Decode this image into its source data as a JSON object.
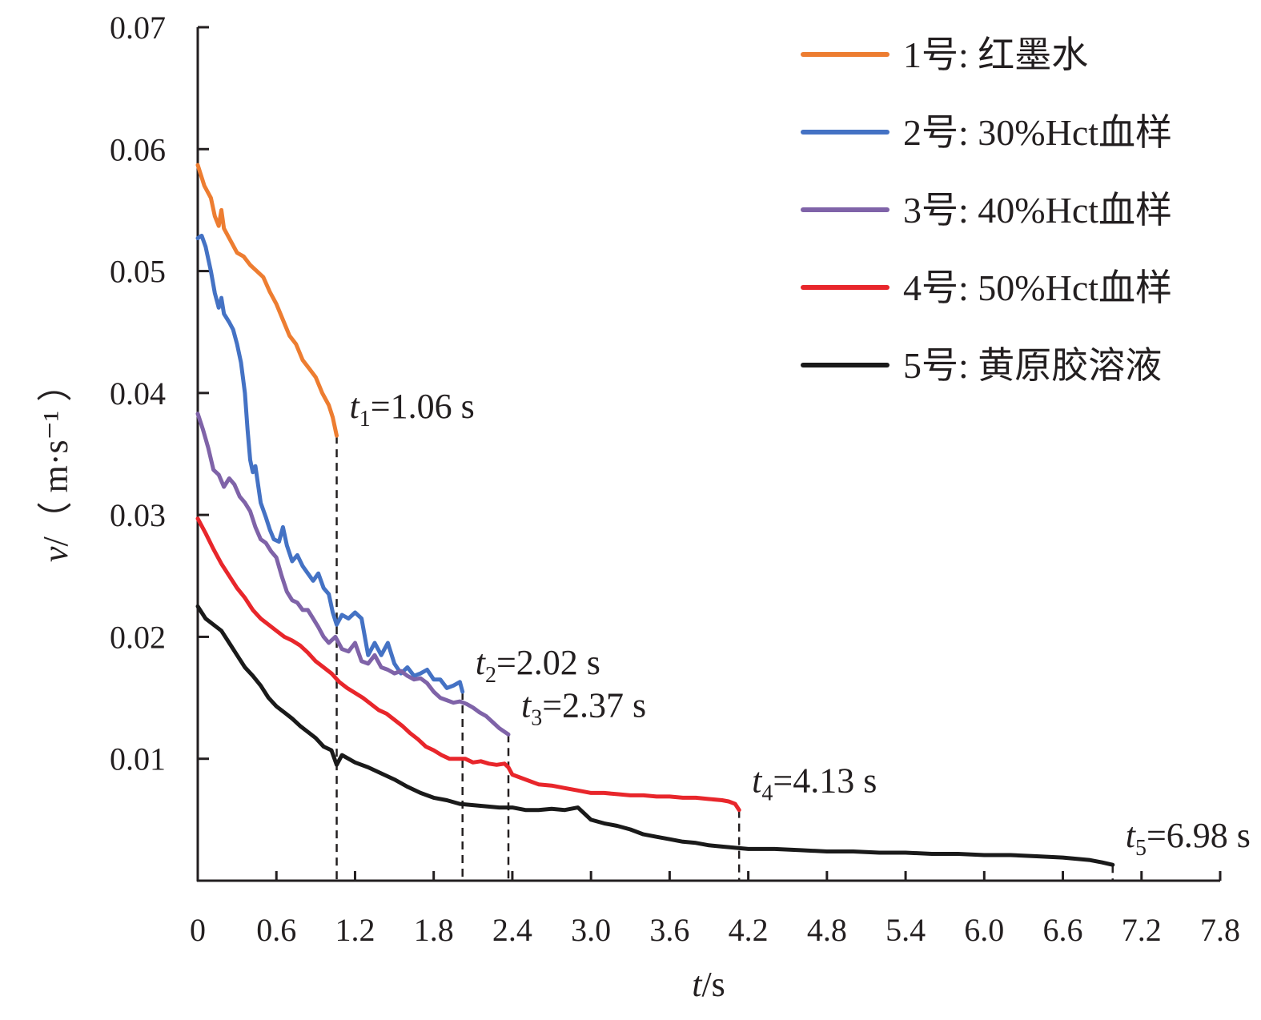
{
  "chart_data": {
    "type": "line",
    "xlabel": {
      "var": "t",
      "unit": "/s"
    },
    "ylabel": {
      "var": "v",
      "unit": "/（ m·s⁻¹ ）"
    },
    "xlim": [
      0,
      7.8
    ],
    "ylim": [
      0,
      0.07
    ],
    "x_ticks": [
      "0",
      "0.6",
      "1.2",
      "1.8",
      "2.4",
      "3.0",
      "3.6",
      "4.2",
      "4.8",
      "5.4",
      "6.0",
      "6.6",
      "7.2",
      "7.8"
    ],
    "y_ticks": [
      "0.01",
      "0.02",
      "0.03",
      "0.04",
      "0.05",
      "0.06",
      "0.07"
    ],
    "grid": false,
    "legend_position": "top-right",
    "series": [
      {
        "name": "1号: 红墨水",
        "color": "#ed7d31",
        "points": [
          [
            0,
            0.0587
          ],
          [
            0.05,
            0.057
          ],
          [
            0.1,
            0.056
          ],
          [
            0.13,
            0.0545
          ],
          [
            0.16,
            0.0537
          ],
          [
            0.18,
            0.055
          ],
          [
            0.2,
            0.0535
          ],
          [
            0.25,
            0.0525
          ],
          [
            0.3,
            0.0515
          ],
          [
            0.35,
            0.0512
          ],
          [
            0.4,
            0.0505
          ],
          [
            0.45,
            0.05
          ],
          [
            0.5,
            0.0495
          ],
          [
            0.55,
            0.0483
          ],
          [
            0.6,
            0.0473
          ],
          [
            0.65,
            0.046
          ],
          [
            0.7,
            0.0447
          ],
          [
            0.75,
            0.044
          ],
          [
            0.8,
            0.0427
          ],
          [
            0.85,
            0.042
          ],
          [
            0.9,
            0.0413
          ],
          [
            0.95,
            0.04
          ],
          [
            1.0,
            0.039
          ],
          [
            1.03,
            0.038
          ],
          [
            1.06,
            0.0365
          ]
        ]
      },
      {
        "name": "2号: 30%Hct血样",
        "color": "#4472c4",
        "points": [
          [
            0,
            0.0527
          ],
          [
            0.03,
            0.0529
          ],
          [
            0.06,
            0.052
          ],
          [
            0.1,
            0.05
          ],
          [
            0.13,
            0.0482
          ],
          [
            0.16,
            0.047
          ],
          [
            0.18,
            0.0478
          ],
          [
            0.2,
            0.0465
          ],
          [
            0.24,
            0.0458
          ],
          [
            0.27,
            0.0452
          ],
          [
            0.3,
            0.044
          ],
          [
            0.33,
            0.0425
          ],
          [
            0.36,
            0.04
          ],
          [
            0.38,
            0.037
          ],
          [
            0.4,
            0.0345
          ],
          [
            0.42,
            0.0335
          ],
          [
            0.44,
            0.034
          ],
          [
            0.46,
            0.0325
          ],
          [
            0.48,
            0.031
          ],
          [
            0.52,
            0.0298
          ],
          [
            0.55,
            0.0288
          ],
          [
            0.58,
            0.028
          ],
          [
            0.62,
            0.0278
          ],
          [
            0.65,
            0.029
          ],
          [
            0.68,
            0.0275
          ],
          [
            0.72,
            0.0262
          ],
          [
            0.76,
            0.0267
          ],
          [
            0.8,
            0.0258
          ],
          [
            0.84,
            0.0252
          ],
          [
            0.88,
            0.0246
          ],
          [
            0.92,
            0.0252
          ],
          [
            0.96,
            0.024
          ],
          [
            1.0,
            0.0235
          ],
          [
            1.03,
            0.022
          ],
          [
            1.06,
            0.021
          ],
          [
            1.1,
            0.0218
          ],
          [
            1.15,
            0.0215
          ],
          [
            1.2,
            0.022
          ],
          [
            1.25,
            0.0215
          ],
          [
            1.3,
            0.0185
          ],
          [
            1.35,
            0.0195
          ],
          [
            1.4,
            0.0185
          ],
          [
            1.45,
            0.0195
          ],
          [
            1.5,
            0.0178
          ],
          [
            1.55,
            0.017
          ],
          [
            1.6,
            0.0175
          ],
          [
            1.65,
            0.0168
          ],
          [
            1.7,
            0.017
          ],
          [
            1.75,
            0.0173
          ],
          [
            1.8,
            0.0165
          ],
          [
            1.85,
            0.0165
          ],
          [
            1.9,
            0.0158
          ],
          [
            1.95,
            0.016
          ],
          [
            2.0,
            0.0163
          ],
          [
            2.02,
            0.0155
          ]
        ]
      },
      {
        "name": "3号: 40%Hct血样",
        "color": "#7f63a8",
        "points": [
          [
            0,
            0.0383
          ],
          [
            0.04,
            0.037
          ],
          [
            0.08,
            0.0355
          ],
          [
            0.12,
            0.0337
          ],
          [
            0.16,
            0.0333
          ],
          [
            0.2,
            0.0323
          ],
          [
            0.24,
            0.033
          ],
          [
            0.28,
            0.0325
          ],
          [
            0.32,
            0.0315
          ],
          [
            0.36,
            0.031
          ],
          [
            0.4,
            0.0303
          ],
          [
            0.44,
            0.029
          ],
          [
            0.48,
            0.028
          ],
          [
            0.52,
            0.0277
          ],
          [
            0.56,
            0.027
          ],
          [
            0.6,
            0.0265
          ],
          [
            0.64,
            0.025
          ],
          [
            0.68,
            0.0237
          ],
          [
            0.72,
            0.023
          ],
          [
            0.76,
            0.0228
          ],
          [
            0.8,
            0.0222
          ],
          [
            0.84,
            0.0222
          ],
          [
            0.88,
            0.0215
          ],
          [
            0.92,
            0.0208
          ],
          [
            0.96,
            0.02
          ],
          [
            1.0,
            0.0195
          ],
          [
            1.05,
            0.02
          ],
          [
            1.1,
            0.019
          ],
          [
            1.15,
            0.0188
          ],
          [
            1.2,
            0.0195
          ],
          [
            1.25,
            0.018
          ],
          [
            1.3,
            0.0178
          ],
          [
            1.35,
            0.0185
          ],
          [
            1.4,
            0.0175
          ],
          [
            1.45,
            0.0173
          ],
          [
            1.5,
            0.017
          ],
          [
            1.55,
            0.0172
          ],
          [
            1.6,
            0.0168
          ],
          [
            1.65,
            0.0165
          ],
          [
            1.7,
            0.0166
          ],
          [
            1.75,
            0.0162
          ],
          [
            1.8,
            0.0155
          ],
          [
            1.85,
            0.015
          ],
          [
            1.9,
            0.0148
          ],
          [
            1.95,
            0.0146
          ],
          [
            2.0,
            0.0147
          ],
          [
            2.05,
            0.0145
          ],
          [
            2.1,
            0.0142
          ],
          [
            2.15,
            0.0138
          ],
          [
            2.2,
            0.0135
          ],
          [
            2.25,
            0.013
          ],
          [
            2.3,
            0.0125
          ],
          [
            2.37,
            0.012
          ]
        ]
      },
      {
        "name": "4号: 50%Hct血样",
        "color": "#e8262b",
        "points": [
          [
            0,
            0.0297
          ],
          [
            0.06,
            0.0285
          ],
          [
            0.12,
            0.0272
          ],
          [
            0.18,
            0.026
          ],
          [
            0.24,
            0.025
          ],
          [
            0.3,
            0.024
          ],
          [
            0.36,
            0.0232
          ],
          [
            0.42,
            0.0222
          ],
          [
            0.48,
            0.0215
          ],
          [
            0.54,
            0.021
          ],
          [
            0.6,
            0.0205
          ],
          [
            0.66,
            0.02
          ],
          [
            0.72,
            0.0197
          ],
          [
            0.78,
            0.0193
          ],
          [
            0.84,
            0.0187
          ],
          [
            0.9,
            0.018
          ],
          [
            0.96,
            0.0175
          ],
          [
            1.02,
            0.017
          ],
          [
            1.08,
            0.0163
          ],
          [
            1.14,
            0.0158
          ],
          [
            1.2,
            0.0154
          ],
          [
            1.26,
            0.015
          ],
          [
            1.32,
            0.0145
          ],
          [
            1.38,
            0.014
          ],
          [
            1.44,
            0.0137
          ],
          [
            1.5,
            0.0132
          ],
          [
            1.56,
            0.0127
          ],
          [
            1.62,
            0.0121
          ],
          [
            1.68,
            0.0116
          ],
          [
            1.74,
            0.011
          ],
          [
            1.8,
            0.0107
          ],
          [
            1.86,
            0.0103
          ],
          [
            1.92,
            0.01
          ],
          [
            1.98,
            0.01
          ],
          [
            2.04,
            0.01
          ],
          [
            2.1,
            0.0097
          ],
          [
            2.16,
            0.0098
          ],
          [
            2.22,
            0.0096
          ],
          [
            2.28,
            0.0095
          ],
          [
            2.34,
            0.0096
          ],
          [
            2.37,
            0.0093
          ],
          [
            2.4,
            0.0087
          ],
          [
            2.5,
            0.0083
          ],
          [
            2.6,
            0.0079
          ],
          [
            2.7,
            0.0078
          ],
          [
            2.8,
            0.0076
          ],
          [
            2.9,
            0.0074
          ],
          [
            3.0,
            0.0072
          ],
          [
            3.1,
            0.0072
          ],
          [
            3.2,
            0.0071
          ],
          [
            3.3,
            0.007
          ],
          [
            3.4,
            0.007
          ],
          [
            3.5,
            0.0069
          ],
          [
            3.6,
            0.0069
          ],
          [
            3.7,
            0.0068
          ],
          [
            3.8,
            0.0068
          ],
          [
            3.9,
            0.0067
          ],
          [
            4.0,
            0.0066
          ],
          [
            4.05,
            0.0065
          ],
          [
            4.1,
            0.0063
          ],
          [
            4.13,
            0.0058
          ]
        ]
      },
      {
        "name": "5号: 黄原胶溶液",
        "color": "#1a1a1a",
        "points": [
          [
            0,
            0.0225
          ],
          [
            0.06,
            0.0215
          ],
          [
            0.12,
            0.021
          ],
          [
            0.18,
            0.0205
          ],
          [
            0.24,
            0.0195
          ],
          [
            0.3,
            0.0185
          ],
          [
            0.36,
            0.0175
          ],
          [
            0.42,
            0.0168
          ],
          [
            0.48,
            0.016
          ],
          [
            0.54,
            0.015
          ],
          [
            0.6,
            0.0143
          ],
          [
            0.66,
            0.0138
          ],
          [
            0.72,
            0.0133
          ],
          [
            0.78,
            0.0127
          ],
          [
            0.84,
            0.0122
          ],
          [
            0.9,
            0.0117
          ],
          [
            0.96,
            0.011
          ],
          [
            1.02,
            0.0107
          ],
          [
            1.06,
            0.0095
          ],
          [
            1.1,
            0.0103
          ],
          [
            1.2,
            0.0097
          ],
          [
            1.3,
            0.0093
          ],
          [
            1.4,
            0.0088
          ],
          [
            1.5,
            0.0083
          ],
          [
            1.6,
            0.0077
          ],
          [
            1.7,
            0.0072
          ],
          [
            1.8,
            0.0068
          ],
          [
            1.9,
            0.0066
          ],
          [
            2.0,
            0.0063
          ],
          [
            2.1,
            0.0062
          ],
          [
            2.2,
            0.0061
          ],
          [
            2.3,
            0.006
          ],
          [
            2.4,
            0.006
          ],
          [
            2.5,
            0.0058
          ],
          [
            2.6,
            0.0058
          ],
          [
            2.7,
            0.0059
          ],
          [
            2.8,
            0.0058
          ],
          [
            2.9,
            0.006
          ],
          [
            3.0,
            0.005
          ],
          [
            3.1,
            0.0047
          ],
          [
            3.2,
            0.0045
          ],
          [
            3.3,
            0.0042
          ],
          [
            3.4,
            0.0038
          ],
          [
            3.5,
            0.0036
          ],
          [
            3.6,
            0.0034
          ],
          [
            3.7,
            0.0032
          ],
          [
            3.8,
            0.0031
          ],
          [
            3.9,
            0.0029
          ],
          [
            4.0,
            0.0028
          ],
          [
            4.1,
            0.0027
          ],
          [
            4.2,
            0.0026
          ],
          [
            4.4,
            0.0026
          ],
          [
            4.6,
            0.0025
          ],
          [
            4.8,
            0.0024
          ],
          [
            5.0,
            0.0024
          ],
          [
            5.2,
            0.0023
          ],
          [
            5.4,
            0.0023
          ],
          [
            5.6,
            0.0022
          ],
          [
            5.8,
            0.0022
          ],
          [
            6.0,
            0.0021
          ],
          [
            6.2,
            0.0021
          ],
          [
            6.4,
            0.002
          ],
          [
            6.6,
            0.0019
          ],
          [
            6.8,
            0.0017
          ],
          [
            6.9,
            0.0015
          ],
          [
            6.98,
            0.0013
          ]
        ]
      }
    ],
    "annotations": [
      {
        "var": "t",
        "sub": "1",
        "text": "=1.06 s",
        "x": 1.06,
        "y": 0.0365
      },
      {
        "var": "t",
        "sub": "2",
        "text": "=2.02 s",
        "x": 2.02,
        "y": 0.0155
      },
      {
        "var": "t",
        "sub": "3",
        "text": "=2.37 s",
        "x": 2.37,
        "y": 0.012
      },
      {
        "var": "t",
        "sub": "4",
        "text": "=4.13 s",
        "x": 4.13,
        "y": 0.0058
      },
      {
        "var": "t",
        "sub": "5",
        "text": "=6.98 s",
        "x": 6.98,
        "y": 0.0013
      }
    ]
  }
}
